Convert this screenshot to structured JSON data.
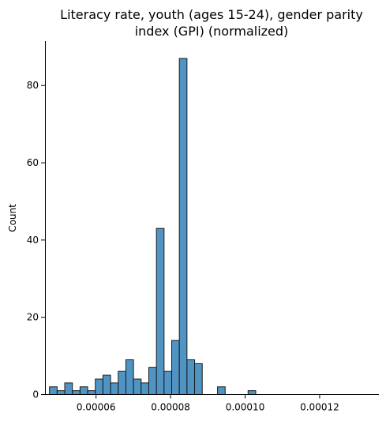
{
  "chart_data": {
    "type": "bar",
    "title_lines": [
      "Literacy rate, youth (ages 15-24), gender parity",
      "index (GPI) (normalized)"
    ],
    "xlabel": "",
    "ylabel": "Count",
    "xlim": [
      4.63e-05,
      0.0001359
    ],
    "ylim": [
      0,
      91.5
    ],
    "x_ticks": [
      {
        "value": 6e-05,
        "label": "0.00006"
      },
      {
        "value": 8e-05,
        "label": "0.00008"
      },
      {
        "value": 0.0001,
        "label": "0.00010"
      },
      {
        "value": 0.00012,
        "label": "0.00012"
      }
    ],
    "y_ticks": [
      {
        "value": 0,
        "label": "0"
      },
      {
        "value": 20,
        "label": "20"
      },
      {
        "value": 40,
        "label": "40"
      },
      {
        "value": 60,
        "label": "60"
      },
      {
        "value": 80,
        "label": "80"
      }
    ],
    "bin_start": 4.75e-05,
    "bin_width": 2.05e-06,
    "counts": [
      2,
      1,
      3,
      1,
      2,
      1,
      4,
      5,
      3,
      6,
      9,
      4,
      3,
      7,
      43,
      6,
      14,
      87,
      9,
      8,
      0,
      0,
      2,
      0,
      0,
      0,
      1
    ],
    "bar_color": "#5094c4",
    "edge_color": "#1a1a1a",
    "grid": false
  }
}
